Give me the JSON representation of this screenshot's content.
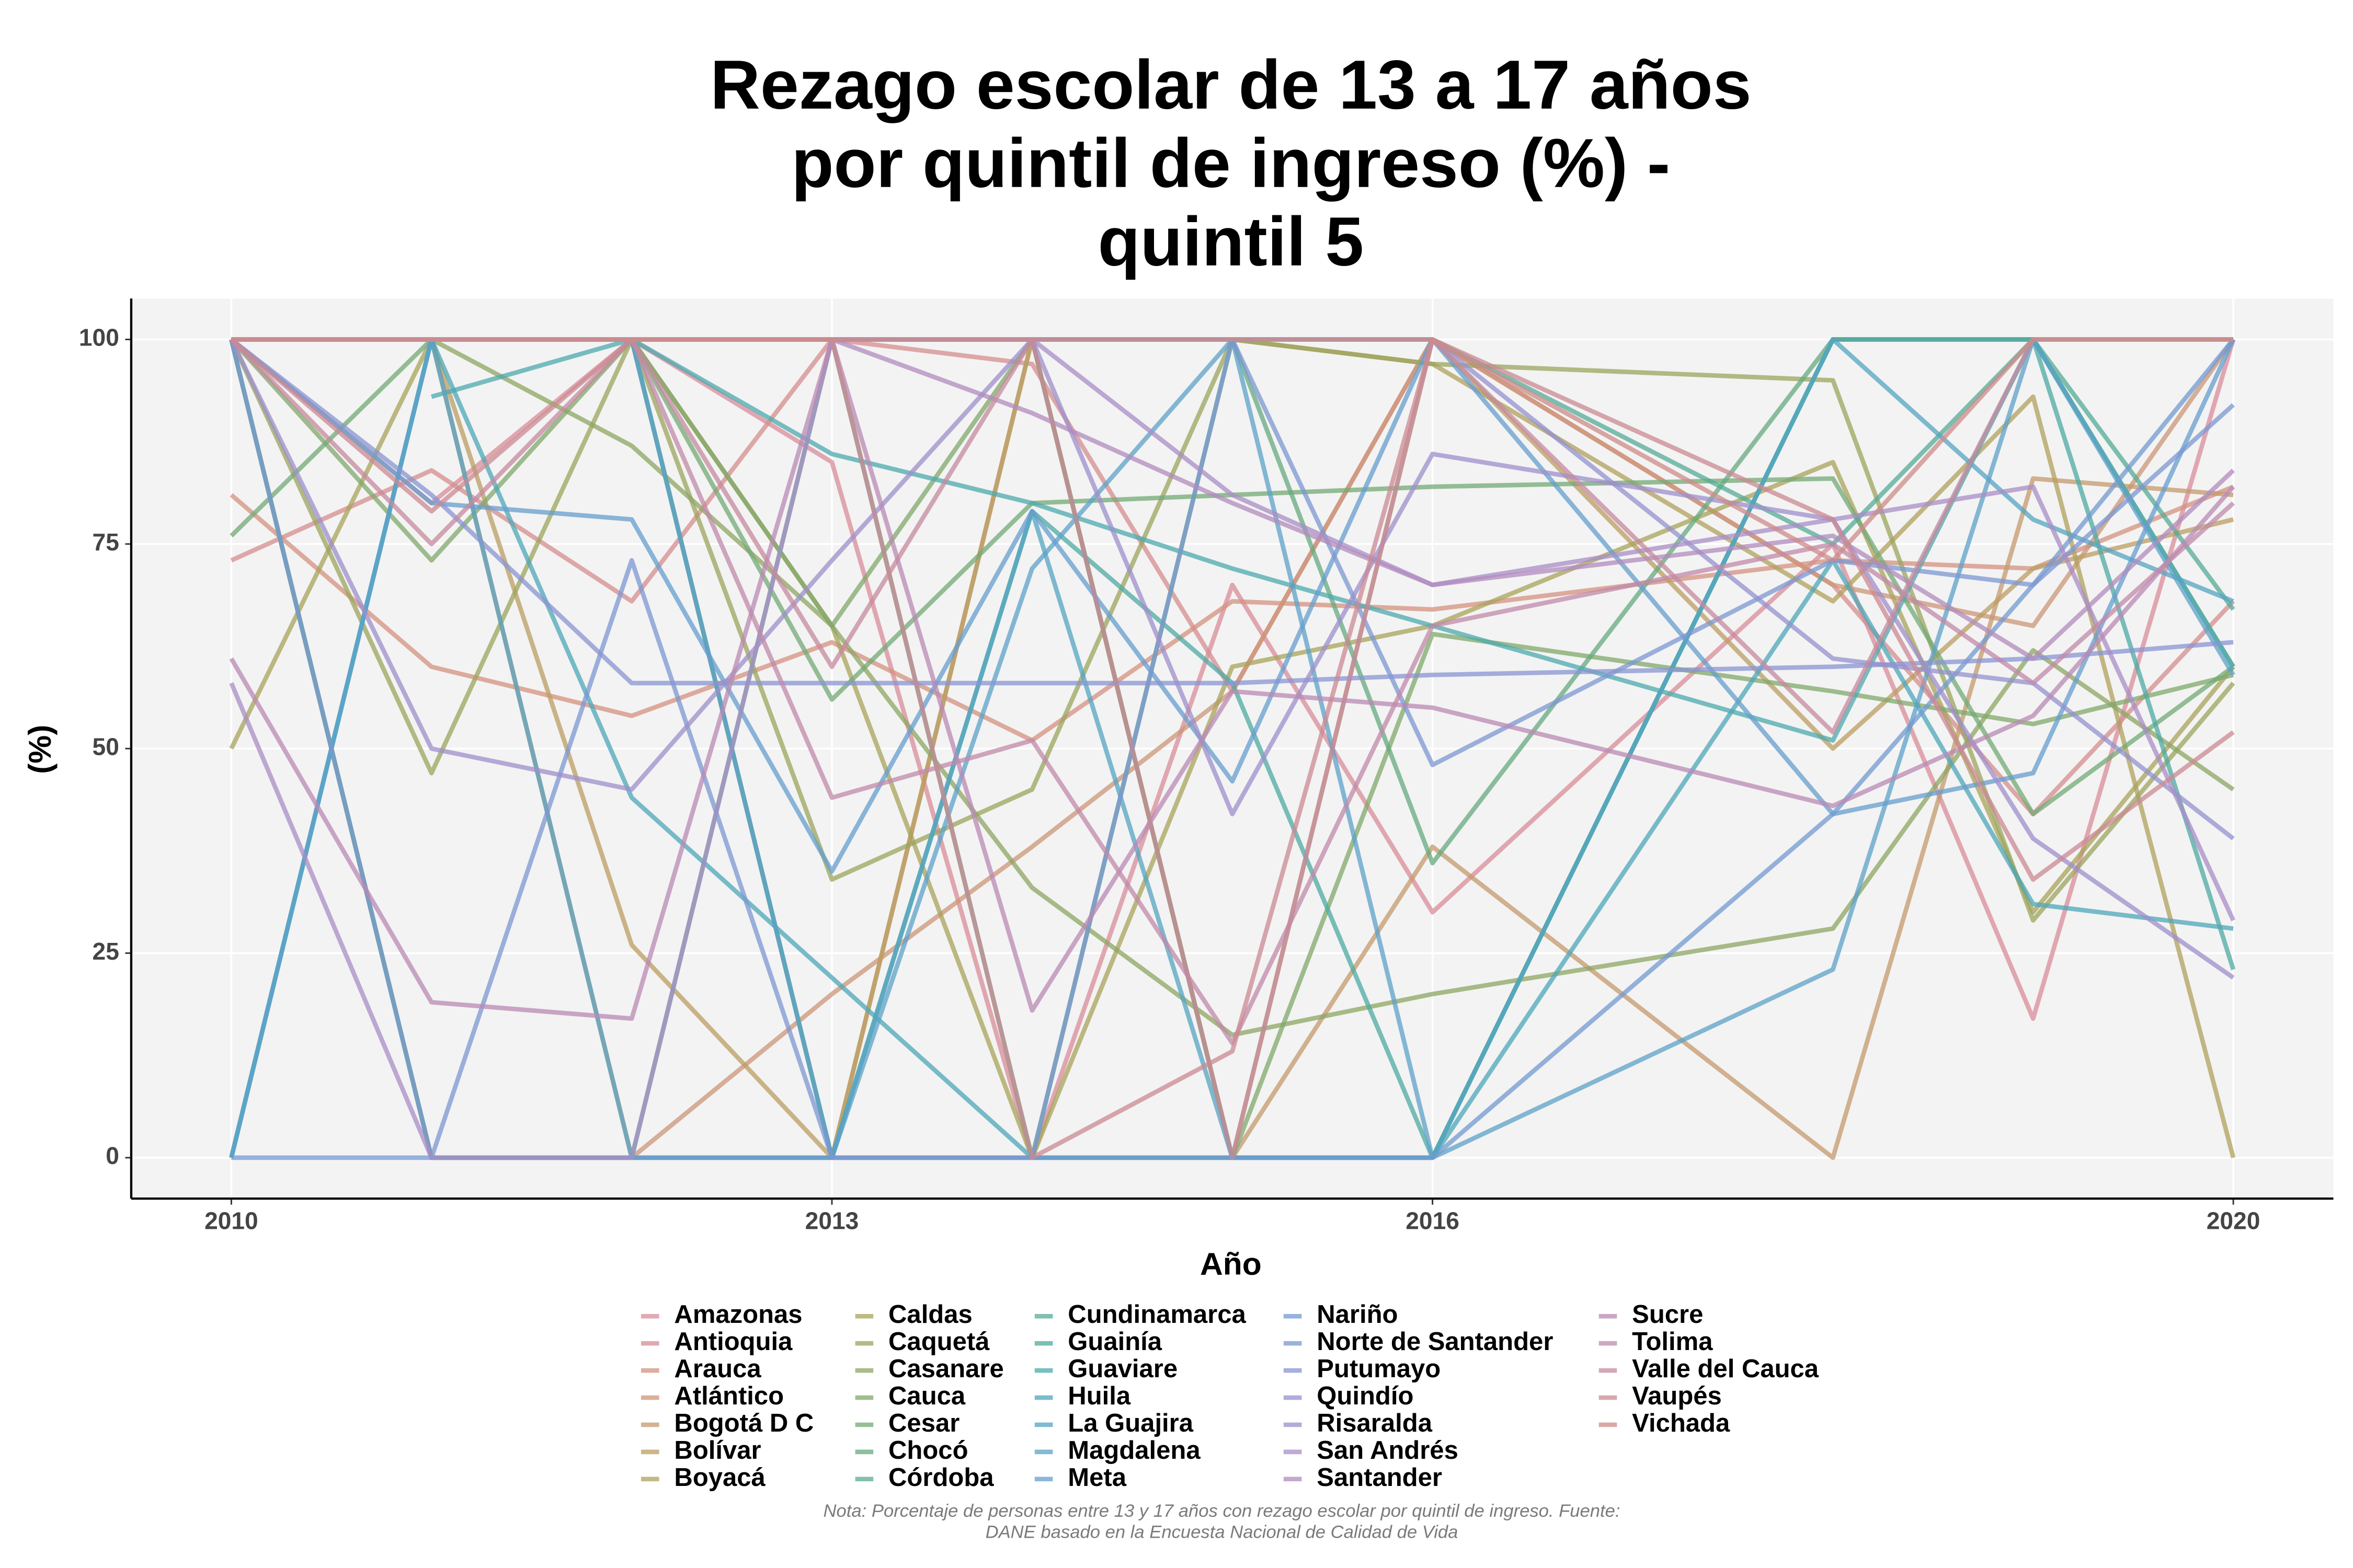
{
  "chart_data": {
    "type": "line",
    "title": "Rezago escolar de 13 a 17 años\npor quintil de ingreso (%) -\nquintil 5",
    "x_label": "Año",
    "y_label": "(%)",
    "note": "Nota: Porcentaje de personas entre 13 y 17 años con rezago escolar por quintil de ingreso. Fuente:\nDANE basado en la Encuesta Nacional de Calidad de Vida",
    "x": [
      2010,
      2011,
      2012,
      2013,
      2014,
      2015,
      2016,
      2018,
      2019,
      2020
    ],
    "xlim": [
      2009.5,
      2020.5
    ],
    "xticks": [
      2010,
      2013,
      2016,
      2020
    ],
    "ylim": [
      -5,
      105
    ],
    "yticks": [
      0,
      25,
      50,
      75,
      100
    ],
    "grid": true,
    "legend": "bottom",
    "series": [
      {
        "name": "Amazonas",
        "color": "#d98c9a",
        "values": [
          100,
          80,
          100,
          85,
          0,
          70,
          30,
          75,
          17,
          100
        ]
      },
      {
        "name": "Antioquia",
        "color": "#d68d8d",
        "values": [
          73,
          84,
          68,
          100,
          97,
          57,
          100,
          70,
          42,
          68
        ]
      },
      {
        "name": "Arauca",
        "color": "#d4917f",
        "values": [
          81,
          60,
          54,
          63,
          51,
          68,
          67,
          73,
          72,
          82
        ]
      },
      {
        "name": "Atlántico",
        "color": "#cc9677",
        "values": [
          100,
          100,
          0,
          20,
          38,
          57,
          100,
          70,
          65,
          100
        ]
      },
      {
        "name": "Bogotá D C",
        "color": "#c49a6c",
        "values": [
          100,
          100,
          100,
          0,
          100,
          0,
          38,
          0,
          83,
          81
        ]
      },
      {
        "name": "Bolívar",
        "color": "#bb9d62",
        "values": [
          100,
          100,
          26,
          0,
          100,
          0,
          100,
          50,
          72,
          78
        ]
      },
      {
        "name": "Boyacá",
        "color": "#b0a05c",
        "values": [
          100,
          100,
          100,
          100,
          100,
          100,
          97,
          68,
          93,
          0
        ]
      },
      {
        "name": "Caldas",
        "color": "#a8a35a",
        "values": [
          50,
          100,
          100,
          65,
          0,
          60,
          65,
          85,
          30,
          60
        ]
      },
      {
        "name": "Caquetá",
        "color": "#9ba45c",
        "values": [
          100,
          47,
          100,
          34,
          45,
          100,
          97,
          95,
          29,
          58
        ]
      },
      {
        "name": "Casanare",
        "color": "#8ea662",
        "values": [
          100,
          100,
          87,
          65,
          33,
          15,
          20,
          28,
          62,
          45
        ]
      },
      {
        "name": "Cauca",
        "color": "#80a86a",
        "values": [
          100,
          73,
          100,
          65,
          100,
          0,
          64,
          57,
          53,
          59
        ]
      },
      {
        "name": "Cesar",
        "color": "#73a974",
        "values": [
          76,
          100,
          100,
          56,
          80,
          81,
          82,
          83,
          42,
          60
        ]
      },
      {
        "name": "Chocó",
        "color": "#66aa7f",
        "values": [
          100,
          0,
          0,
          0,
          0,
          100,
          36,
          100,
          100,
          60
        ]
      },
      {
        "name": "Córdoba",
        "color": "#5cab8b",
        "values": [
          100,
          0,
          0,
          100,
          0,
          0,
          0,
          100,
          100,
          100
        ]
      },
      {
        "name": "Cundinamarca",
        "color": "#54ab97",
        "values": [
          100,
          100,
          100,
          100,
          100,
          100,
          100,
          75,
          100,
          67
        ]
      },
      {
        "name": "Guainía",
        "color": "#4eaaa3",
        "values": [
          null,
          100,
          100,
          0,
          79,
          58,
          0,
          100,
          100,
          23
        ]
      },
      {
        "name": "Guaviare",
        "color": "#4ca9ae",
        "values": [
          null,
          93,
          100,
          86,
          80,
          72,
          65,
          51,
          100,
          60
        ]
      },
      {
        "name": "Huila",
        "color": "#4ea7b8",
        "values": [
          0,
          100,
          44,
          22,
          0,
          0,
          0,
          73,
          31,
          28
        ]
      },
      {
        "name": "La Guajira",
        "color": "#54a4c1",
        "values": [
          0,
          100,
          0,
          0,
          79,
          0,
          0,
          100,
          78,
          68
        ]
      },
      {
        "name": "Magdalena",
        "color": "#5ca1c8",
        "values": [
          0,
          100,
          100,
          0,
          72,
          100,
          0,
          23,
          100,
          59
        ]
      },
      {
        "name": "Meta",
        "color": "#669dcd",
        "values": [
          100,
          80,
          78,
          35,
          79,
          46,
          100,
          42,
          47,
          100
        ]
      },
      {
        "name": "Nariño",
        "color": "#719ad0",
        "values": [
          0,
          0,
          0,
          0,
          0,
          0,
          0,
          42,
          70,
          100
        ]
      },
      {
        "name": "Norte de Santander",
        "color": "#7c97d2",
        "values": [
          100,
          0,
          73,
          0,
          0,
          100,
          48,
          73,
          70,
          92
        ]
      },
      {
        "name": "Putumayo",
        "color": "#8894d1",
        "values": [
          100,
          81,
          58,
          58,
          58,
          58,
          59,
          60,
          61,
          63
        ]
      },
      {
        "name": "Quindío",
        "color": "#9391cf",
        "values": [
          100,
          100,
          100,
          100,
          100,
          100,
          100,
          61,
          58,
          39
        ]
      },
      {
        "name": "Risaralda",
        "color": "#9e8fcb",
        "values": [
          100,
          50,
          45,
          73,
          100,
          42,
          86,
          78,
          39,
          22
        ]
      },
      {
        "name": "San Andrés",
        "color": "#a88dc5",
        "values": [
          58,
          0,
          0,
          100,
          100,
          81,
          70,
          78,
          82,
          29
        ]
      },
      {
        "name": "Santander",
        "color": "#b18bbd",
        "values": [
          100,
          100,
          100,
          100,
          91,
          80,
          70,
          76,
          61,
          84
        ]
      },
      {
        "name": "Sucre",
        "color": "#b98ab4",
        "values": [
          61,
          19,
          17,
          100,
          18,
          57,
          55,
          43,
          54,
          82
        ]
      },
      {
        "name": "Tolima",
        "color": "#c089aa",
        "values": [
          100,
          100,
          100,
          44,
          51,
          14,
          65,
          75,
          58,
          80
        ]
      },
      {
        "name": "Valle del Cauca",
        "color": "#c6899f",
        "values": [
          100,
          75,
          100,
          60,
          100,
          0,
          100,
          52,
          100,
          100
        ]
      },
      {
        "name": "Vaupés",
        "color": "#cb8a93",
        "values": [
          100,
          79,
          100,
          100,
          0,
          13,
          100,
          78,
          34,
          52
        ]
      },
      {
        "name": "Vichada",
        "color": "#ce8b88",
        "values": [
          100,
          100,
          100,
          100,
          100,
          100,
          100,
          73,
          100,
          100
        ]
      }
    ]
  }
}
